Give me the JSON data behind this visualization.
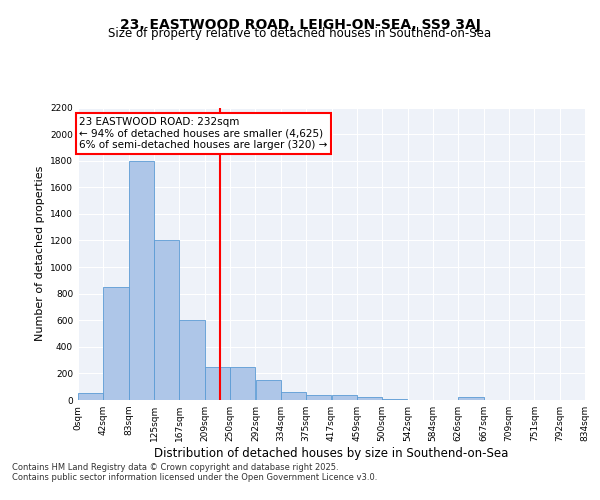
{
  "title1": "23, EASTWOOD ROAD, LEIGH-ON-SEA, SS9 3AJ",
  "title2": "Size of property relative to detached houses in Southend-on-Sea",
  "xlabel": "Distribution of detached houses by size in Southend-on-Sea",
  "ylabel": "Number of detached properties",
  "bar_left_edges": [
    0,
    41.5,
    83,
    124.5,
    166,
    207.5,
    249,
    290.5,
    332,
    373.5,
    415,
    456.5,
    498,
    539.5,
    581,
    622.5,
    664,
    705.5,
    747,
    788.5
  ],
  "bar_heights": [
    50,
    850,
    1800,
    1200,
    600,
    250,
    250,
    150,
    60,
    40,
    35,
    20,
    5,
    0,
    0,
    20,
    0,
    0,
    0,
    0
  ],
  "bar_width": 41.5,
  "bar_color": "#aec6e8",
  "bar_edgecolor": "#5b9bd5",
  "tick_labels": [
    "0sqm",
    "42sqm",
    "83sqm",
    "125sqm",
    "167sqm",
    "209sqm",
    "250sqm",
    "292sqm",
    "334sqm",
    "375sqm",
    "417sqm",
    "459sqm",
    "500sqm",
    "542sqm",
    "584sqm",
    "626sqm",
    "667sqm",
    "709sqm",
    "751sqm",
    "792sqm",
    "834sqm"
  ],
  "red_line_x": 232,
  "ylim": [
    0,
    2200
  ],
  "yticks": [
    0,
    200,
    400,
    600,
    800,
    1000,
    1200,
    1400,
    1600,
    1800,
    2000,
    2200
  ],
  "annotation_title": "23 EASTWOOD ROAD: 232sqm",
  "annotation_line1": "← 94% of detached houses are smaller (4,625)",
  "annotation_line2": "6% of semi-detached houses are larger (320) →",
  "footer1": "Contains HM Land Registry data © Crown copyright and database right 2025.",
  "footer2": "Contains public sector information licensed under the Open Government Licence v3.0.",
  "bg_color": "#eef2f9",
  "grid_color": "#ffffff"
}
